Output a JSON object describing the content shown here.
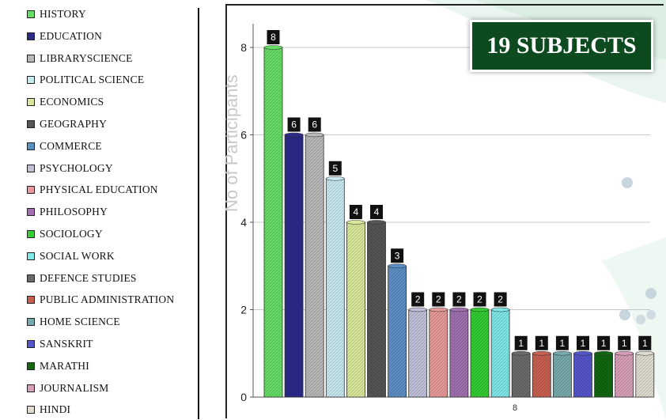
{
  "badge": {
    "text": "19 SUBJECTS"
  },
  "chart_data": {
    "type": "bar",
    "ylabel": "No of Participants",
    "ylim": [
      0,
      8.5
    ],
    "yticks": [
      0,
      2,
      4,
      6,
      8
    ],
    "x_tick_label": "8",
    "legend_position": "left",
    "grid": true,
    "categories": [
      "HISTORY",
      "EDUCATION",
      "LIBRARYSCIENCE",
      "POLITICAL SCIENCE",
      "ECONOMICS",
      "GEOGRAPHY",
      "COMMERCE",
      "PSYCHOLOGY",
      "PHYSICAL EDUCATION",
      "PHILOSOPHY",
      "SOCIOLOGY",
      "SOCIAL WORK",
      "DEFENCE STUDIES",
      "PUBLIC ADMINISTRATION",
      "HOME SCIENCE",
      "SANSKRIT",
      "MARATHI",
      "JOURNALISM",
      "HINDI"
    ],
    "values": [
      8,
      6,
      6,
      5,
      4,
      4,
      3,
      2,
      2,
      2,
      2,
      2,
      1,
      1,
      1,
      1,
      1,
      1,
      1
    ],
    "colors": [
      "#66dd66",
      "#2a2a8a",
      "#b8b8b8",
      "#c8e8f0",
      "#d8e89a",
      "#555555",
      "#5c8fc4",
      "#c0c0d8",
      "#e89a9a",
      "#a070b0",
      "#33cc33",
      "#7fe8e8",
      "#6a6a6a",
      "#c86050",
      "#77aaaa",
      "#5555cc",
      "#116611",
      "#d8a0b8",
      "#e0ddd0"
    ]
  }
}
